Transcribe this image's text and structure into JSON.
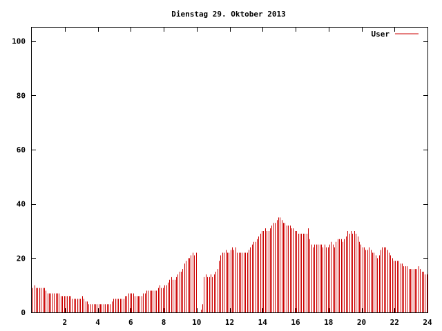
{
  "chart_data": {
    "type": "bar",
    "title": "Dienstag 29. Oktober 2013",
    "xlabel": "",
    "ylabel": "",
    "xlim": [
      0,
      24
    ],
    "ylim": [
      0,
      105
    ],
    "x_ticks": [
      2,
      4,
      6,
      8,
      10,
      12,
      14,
      16,
      18,
      20,
      22,
      24
    ],
    "y_ticks": [
      0,
      20,
      40,
      60,
      80,
      100
    ],
    "grid": false,
    "legend_position": "top-right",
    "series": [
      {
        "name": "User",
        "color": "#cc0000",
        "x_step": 0.1,
        "x_start": 0.05,
        "values": [
          9,
          10,
          9,
          9,
          9,
          9,
          9,
          9,
          8,
          7,
          7,
          7,
          7,
          7,
          7,
          7,
          7,
          6,
          6,
          6,
          6,
          6,
          6,
          6,
          5,
          5,
          5,
          5,
          5,
          5,
          6,
          5,
          4,
          4,
          3,
          3,
          3,
          3,
          3,
          3,
          3,
          3,
          3,
          3,
          3,
          3,
          3,
          3,
          4,
          5,
          5,
          5,
          5,
          5,
          5,
          5,
          6,
          6,
          7,
          7,
          7,
          7,
          6,
          6,
          6,
          6,
          6,
          7,
          7,
          8,
          8,
          8,
          8,
          8,
          8,
          8,
          9,
          10,
          9,
          9,
          10,
          10,
          11,
          12,
          13,
          12,
          12,
          13,
          14,
          15,
          15,
          16,
          18,
          19,
          20,
          20,
          21,
          22,
          21,
          22,
          0,
          0,
          1,
          3,
          13,
          14,
          13,
          13,
          14,
          13,
          14,
          15,
          16,
          19,
          21,
          22,
          22,
          23,
          22,
          22,
          23,
          24,
          23,
          24,
          22,
          22,
          22,
          22,
          22,
          22,
          22,
          23,
          24,
          25,
          26,
          26,
          27,
          28,
          29,
          30,
          30,
          31,
          30,
          30,
          31,
          32,
          33,
          33,
          34,
          35,
          35,
          34,
          33,
          33,
          32,
          32,
          32,
          31,
          31,
          30,
          30,
          29,
          29,
          29,
          29,
          29,
          29,
          31,
          27,
          25,
          24,
          25,
          25,
          25,
          25,
          25,
          24,
          25,
          24,
          24,
          25,
          26,
          25,
          24,
          26,
          27,
          27,
          27,
          26,
          27,
          28,
          30,
          29,
          30,
          29,
          30,
          29,
          28,
          26,
          25,
          24,
          24,
          23,
          23,
          24,
          23,
          22,
          22,
          21,
          20,
          21,
          23,
          24,
          24,
          24,
          23,
          22,
          21,
          20,
          19,
          19,
          19,
          19,
          18,
          18,
          17,
          17,
          17,
          16,
          16,
          16,
          16,
          16,
          16,
          17,
          16,
          15,
          15,
          14,
          14
        ]
      }
    ]
  }
}
